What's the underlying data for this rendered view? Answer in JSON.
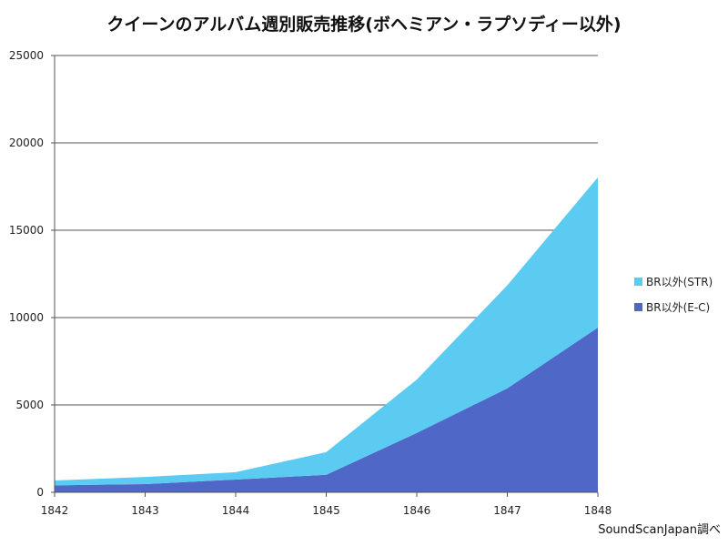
{
  "chart_data": {
    "type": "area",
    "stacked": true,
    "title": "クイーンのアルバム週別販売推移(ボヘミアン・ラプソディー以外)",
    "xlabel": "",
    "ylabel": "",
    "categories": [
      "1842",
      "1843",
      "1844",
      "1845",
      "1846",
      "1847",
      "1848"
    ],
    "series": [
      {
        "name": "BR以外(E-C)",
        "color": "#4f67c6",
        "values": [
          400,
          470,
          730,
          1000,
          3400,
          5950,
          9430
        ]
      },
      {
        "name": "BR以外(STR)",
        "color": "#5ccbf2",
        "values": [
          280,
          410,
          420,
          1300,
          3050,
          5900,
          8600
        ]
      }
    ],
    "ylim": [
      0,
      25000
    ],
    "yticks": [
      "0",
      "5000",
      "10000",
      "15000",
      "20000",
      "25000"
    ],
    "grid": true,
    "legend_position": "right",
    "note": "SoundScanJapan調べ"
  }
}
